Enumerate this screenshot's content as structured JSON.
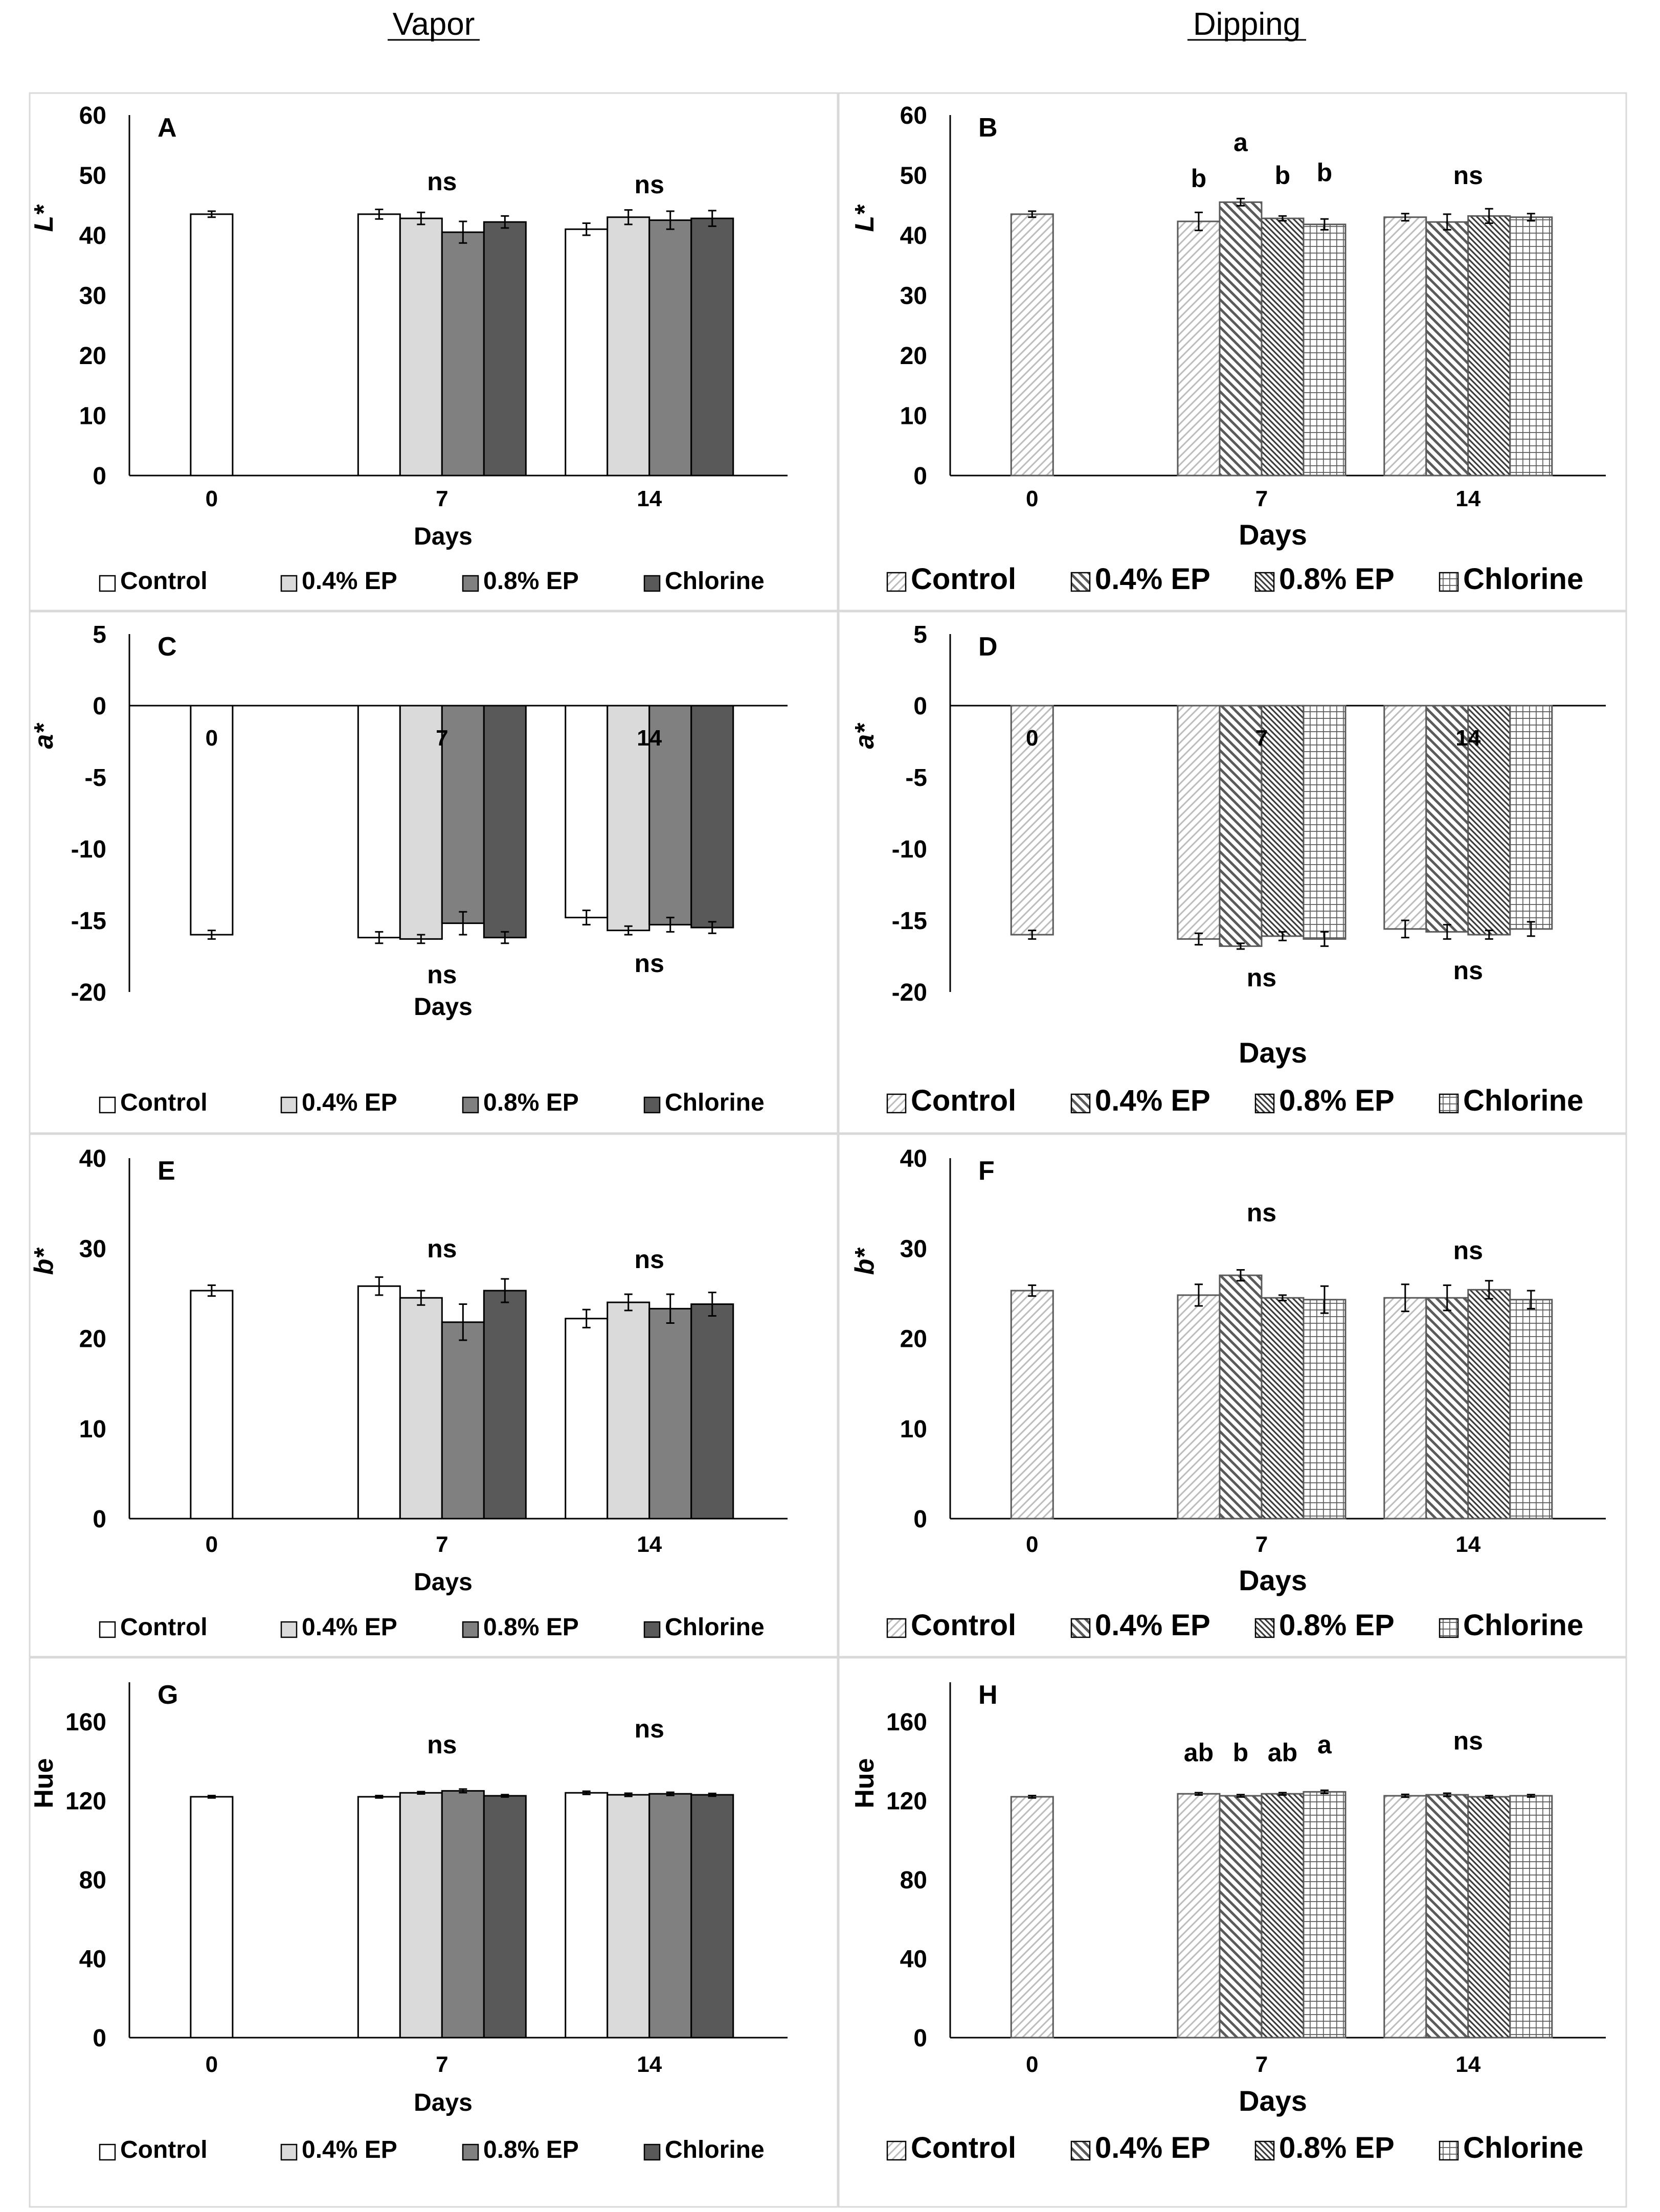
{
  "headers": {
    "left": "Vapor",
    "right": "Dipping"
  },
  "legend_labels": [
    "Control",
    "0.4% EP",
    "0.8% EP",
    "Chlorine"
  ],
  "colors": {
    "vapor": [
      "#ffffff",
      "#dadada",
      "#808080",
      "#595959"
    ],
    "dipping_stroke": "#595959",
    "axis": "#000000"
  },
  "chart_data": [
    {
      "panel": "A",
      "type": "bar",
      "group": "vapor",
      "ylabel": "L*",
      "xlabel": "Days",
      "ylim": [
        0,
        60
      ],
      "yticks": [
        0,
        10,
        20,
        30,
        40,
        50,
        60
      ],
      "categories": [
        "0",
        "7",
        "14"
      ],
      "series": [
        {
          "name": "Control",
          "values": [
            43.5,
            43.5,
            41
          ],
          "errors": [
            0.5,
            0.8,
            1
          ]
        },
        {
          "name": "0.4% EP",
          "values": [
            null,
            42.8,
            43
          ],
          "errors": [
            null,
            1,
            1.2
          ]
        },
        {
          "name": "0.8% EP",
          "values": [
            null,
            40.5,
            42.5
          ],
          "errors": [
            null,
            1.8,
            1.5
          ]
        },
        {
          "name": "Chlorine",
          "values": [
            null,
            42.2,
            42.8
          ],
          "errors": [
            null,
            1,
            1.3
          ]
        }
      ],
      "annotations": [
        {
          "text": "ns",
          "category": "7",
          "y": 47.5
        },
        {
          "text": "ns",
          "category": "14",
          "y": 47
        }
      ]
    },
    {
      "panel": "B",
      "type": "bar",
      "group": "dipping",
      "ylabel": "L*",
      "xlabel": "Days",
      "ylim": [
        0,
        60
      ],
      "yticks": [
        0,
        10,
        20,
        30,
        40,
        50,
        60
      ],
      "categories": [
        "0",
        "7",
        "14"
      ],
      "series": [
        {
          "name": "Control",
          "values": [
            43.5,
            42.3,
            43
          ],
          "errors": [
            0.5,
            1.5,
            0.6
          ]
        },
        {
          "name": "0.4% EP",
          "values": [
            null,
            45.5,
            42.2
          ],
          "errors": [
            null,
            0.6,
            1.3
          ]
        },
        {
          "name": "0.8% EP",
          "values": [
            null,
            42.8,
            43.2
          ],
          "errors": [
            null,
            0.4,
            1.2
          ]
        },
        {
          "name": "Chlorine",
          "values": [
            null,
            41.8,
            43
          ],
          "errors": [
            null,
            0.9,
            0.6
          ]
        }
      ],
      "annotations": [
        {
          "text": "b",
          "category": "7",
          "series": 0,
          "y": 48
        },
        {
          "text": "a",
          "category": "7",
          "series": 1,
          "y": 54
        },
        {
          "text": "b",
          "category": "7",
          "series": 2,
          "y": 48.5
        },
        {
          "text": "b",
          "category": "7",
          "series": 3,
          "y": 49
        },
        {
          "text": "ns",
          "category": "14",
          "y": 48.5
        }
      ]
    },
    {
      "panel": "C",
      "type": "bar",
      "group": "vapor",
      "ylabel": "a*",
      "xlabel": "Days",
      "ylim": [
        -20,
        5
      ],
      "yticks": [
        -20,
        -15,
        -10,
        -5,
        0,
        5
      ],
      "categories": [
        "0",
        "7",
        "14"
      ],
      "category_labels_at_zero": true,
      "series": [
        {
          "name": "Control",
          "values": [
            -16,
            -16.2,
            -14.8
          ],
          "errors": [
            0.3,
            0.4,
            0.5
          ]
        },
        {
          "name": "0.4% EP",
          "values": [
            null,
            -16.3,
            -15.7
          ],
          "errors": [
            null,
            0.3,
            0.3
          ]
        },
        {
          "name": "0.8% EP",
          "values": [
            null,
            -15.2,
            -15.3
          ],
          "errors": [
            null,
            0.8,
            0.5
          ]
        },
        {
          "name": "Chlorine",
          "values": [
            null,
            -16.2,
            -15.5
          ],
          "errors": [
            null,
            0.4,
            0.4
          ]
        }
      ],
      "annotations": [
        {
          "text": "ns",
          "category": "7",
          "y": -19.4
        },
        {
          "text": "ns",
          "category": "14",
          "y": -18.6
        }
      ]
    },
    {
      "panel": "D",
      "type": "bar",
      "group": "dipping",
      "ylabel": "a*",
      "xlabel": "Days",
      "ylim": [
        -20,
        5
      ],
      "yticks": [
        -20,
        -15,
        -10,
        -5,
        0,
        5
      ],
      "categories": [
        "0",
        "7",
        "14"
      ],
      "category_labels_at_zero": true,
      "series": [
        {
          "name": "Control",
          "values": [
            -16,
            -16.3,
            -15.6
          ],
          "errors": [
            0.3,
            0.4,
            0.6
          ]
        },
        {
          "name": "0.4% EP",
          "values": [
            null,
            -16.8,
            -15.8
          ],
          "errors": [
            null,
            0.2,
            0.5
          ]
        },
        {
          "name": "0.8% EP",
          "values": [
            null,
            -16.1,
            -16
          ],
          "errors": [
            null,
            0.3,
            0.3
          ]
        },
        {
          "name": "Chlorine",
          "values": [
            null,
            -16.3,
            -15.6
          ],
          "errors": [
            null,
            0.5,
            0.5
          ]
        }
      ],
      "annotations": [
        {
          "text": "ns",
          "category": "7",
          "y": -19.6
        },
        {
          "text": "ns",
          "category": "14",
          "y": -19.1
        }
      ]
    },
    {
      "panel": "E",
      "type": "bar",
      "group": "vapor",
      "ylabel": "b*",
      "xlabel": "Days",
      "ylim": [
        0,
        40
      ],
      "yticks": [
        0,
        10,
        20,
        30,
        40
      ],
      "categories": [
        "0",
        "7",
        "14"
      ],
      "series": [
        {
          "name": "Control",
          "values": [
            25.3,
            25.8,
            22.2
          ],
          "errors": [
            0.6,
            1,
            1
          ]
        },
        {
          "name": "0.4% EP",
          "values": [
            null,
            24.5,
            24
          ],
          "errors": [
            null,
            0.8,
            0.9
          ]
        },
        {
          "name": "0.8% EP",
          "values": [
            null,
            21.8,
            23.3
          ],
          "errors": [
            null,
            2,
            1.6
          ]
        },
        {
          "name": "Chlorine",
          "values": [
            null,
            25.3,
            23.8
          ],
          "errors": [
            null,
            1.3,
            1.3
          ]
        }
      ],
      "annotations": [
        {
          "text": "ns",
          "category": "7",
          "y": 29
        },
        {
          "text": "ns",
          "category": "14",
          "y": 27.8
        }
      ]
    },
    {
      "panel": "F",
      "type": "bar",
      "group": "dipping",
      "ylabel": "b*",
      "xlabel": "Days",
      "ylim": [
        0,
        40
      ],
      "yticks": [
        0,
        10,
        20,
        30,
        40
      ],
      "categories": [
        "0",
        "7",
        "14"
      ],
      "series": [
        {
          "name": "Control",
          "values": [
            25.3,
            24.8,
            24.5
          ],
          "errors": [
            0.6,
            1.2,
            1.5
          ]
        },
        {
          "name": "0.4% EP",
          "values": [
            null,
            27,
            24.5
          ],
          "errors": [
            null,
            0.6,
            1.4
          ]
        },
        {
          "name": "0.8% EP",
          "values": [
            null,
            24.5,
            25.4
          ],
          "errors": [
            null,
            0.3,
            1
          ]
        },
        {
          "name": "Chlorine",
          "values": [
            null,
            24.3,
            24.3
          ],
          "errors": [
            null,
            1.5,
            1
          ]
        }
      ],
      "annotations": [
        {
          "text": "ns",
          "category": "7",
          "y": 33
        },
        {
          "text": "ns",
          "category": "14",
          "y": 28.8
        }
      ]
    },
    {
      "panel": "G",
      "type": "bar",
      "group": "vapor",
      "ylabel": "Hue",
      "xlabel": "Days",
      "ylim": [
        0,
        180
      ],
      "yticks": [
        0,
        40,
        80,
        120,
        160
      ],
      "categories": [
        "0",
        "7",
        "14"
      ],
      "series": [
        {
          "name": "Control",
          "values": [
            122,
            122,
            124
          ],
          "errors": [
            0.6,
            0.6,
            0.8
          ]
        },
        {
          "name": "0.4% EP",
          "values": [
            null,
            124,
            123
          ],
          "errors": [
            null,
            0.6,
            0.8
          ]
        },
        {
          "name": "0.8% EP",
          "values": [
            null,
            125,
            123.5
          ],
          "errors": [
            null,
            0.9,
            0.8
          ]
        },
        {
          "name": "Chlorine",
          "values": [
            null,
            122.5,
            123
          ],
          "errors": [
            null,
            0.6,
            0.7
          ]
        }
      ],
      "annotations": [
        {
          "text": "ns",
          "category": "7",
          "y": 144
        },
        {
          "text": "ns",
          "category": "14",
          "y": 152
        }
      ]
    },
    {
      "panel": "H",
      "type": "bar",
      "group": "dipping",
      "ylabel": "Hue",
      "xlabel": "Days",
      "ylim": [
        0,
        180
      ],
      "yticks": [
        0,
        40,
        80,
        120,
        160
      ],
      "categories": [
        "0",
        "7",
        "14"
      ],
      "series": [
        {
          "name": "Control",
          "values": [
            122,
            123.5,
            122.5
          ],
          "errors": [
            0.6,
            0.6,
            0.7
          ]
        },
        {
          "name": "0.4% EP",
          "values": [
            null,
            122.5,
            123
          ],
          "errors": [
            null,
            0.6,
            0.8
          ]
        },
        {
          "name": "0.8% EP",
          "values": [
            null,
            123.5,
            122
          ],
          "errors": [
            null,
            0.6,
            0.6
          ]
        },
        {
          "name": "Chlorine",
          "values": [
            null,
            124.5,
            122.5
          ],
          "errors": [
            null,
            0.8,
            0.6
          ]
        }
      ],
      "annotations": [
        {
          "text": "ab",
          "category": "7",
          "series": 0,
          "y": 140
        },
        {
          "text": "b",
          "category": "7",
          "series": 1,
          "y": 140
        },
        {
          "text": "ab",
          "category": "7",
          "series": 2,
          "y": 140
        },
        {
          "text": "a",
          "category": "7",
          "series": 3,
          "y": 144
        },
        {
          "text": "ns",
          "category": "14",
          "y": 146
        }
      ]
    }
  ]
}
